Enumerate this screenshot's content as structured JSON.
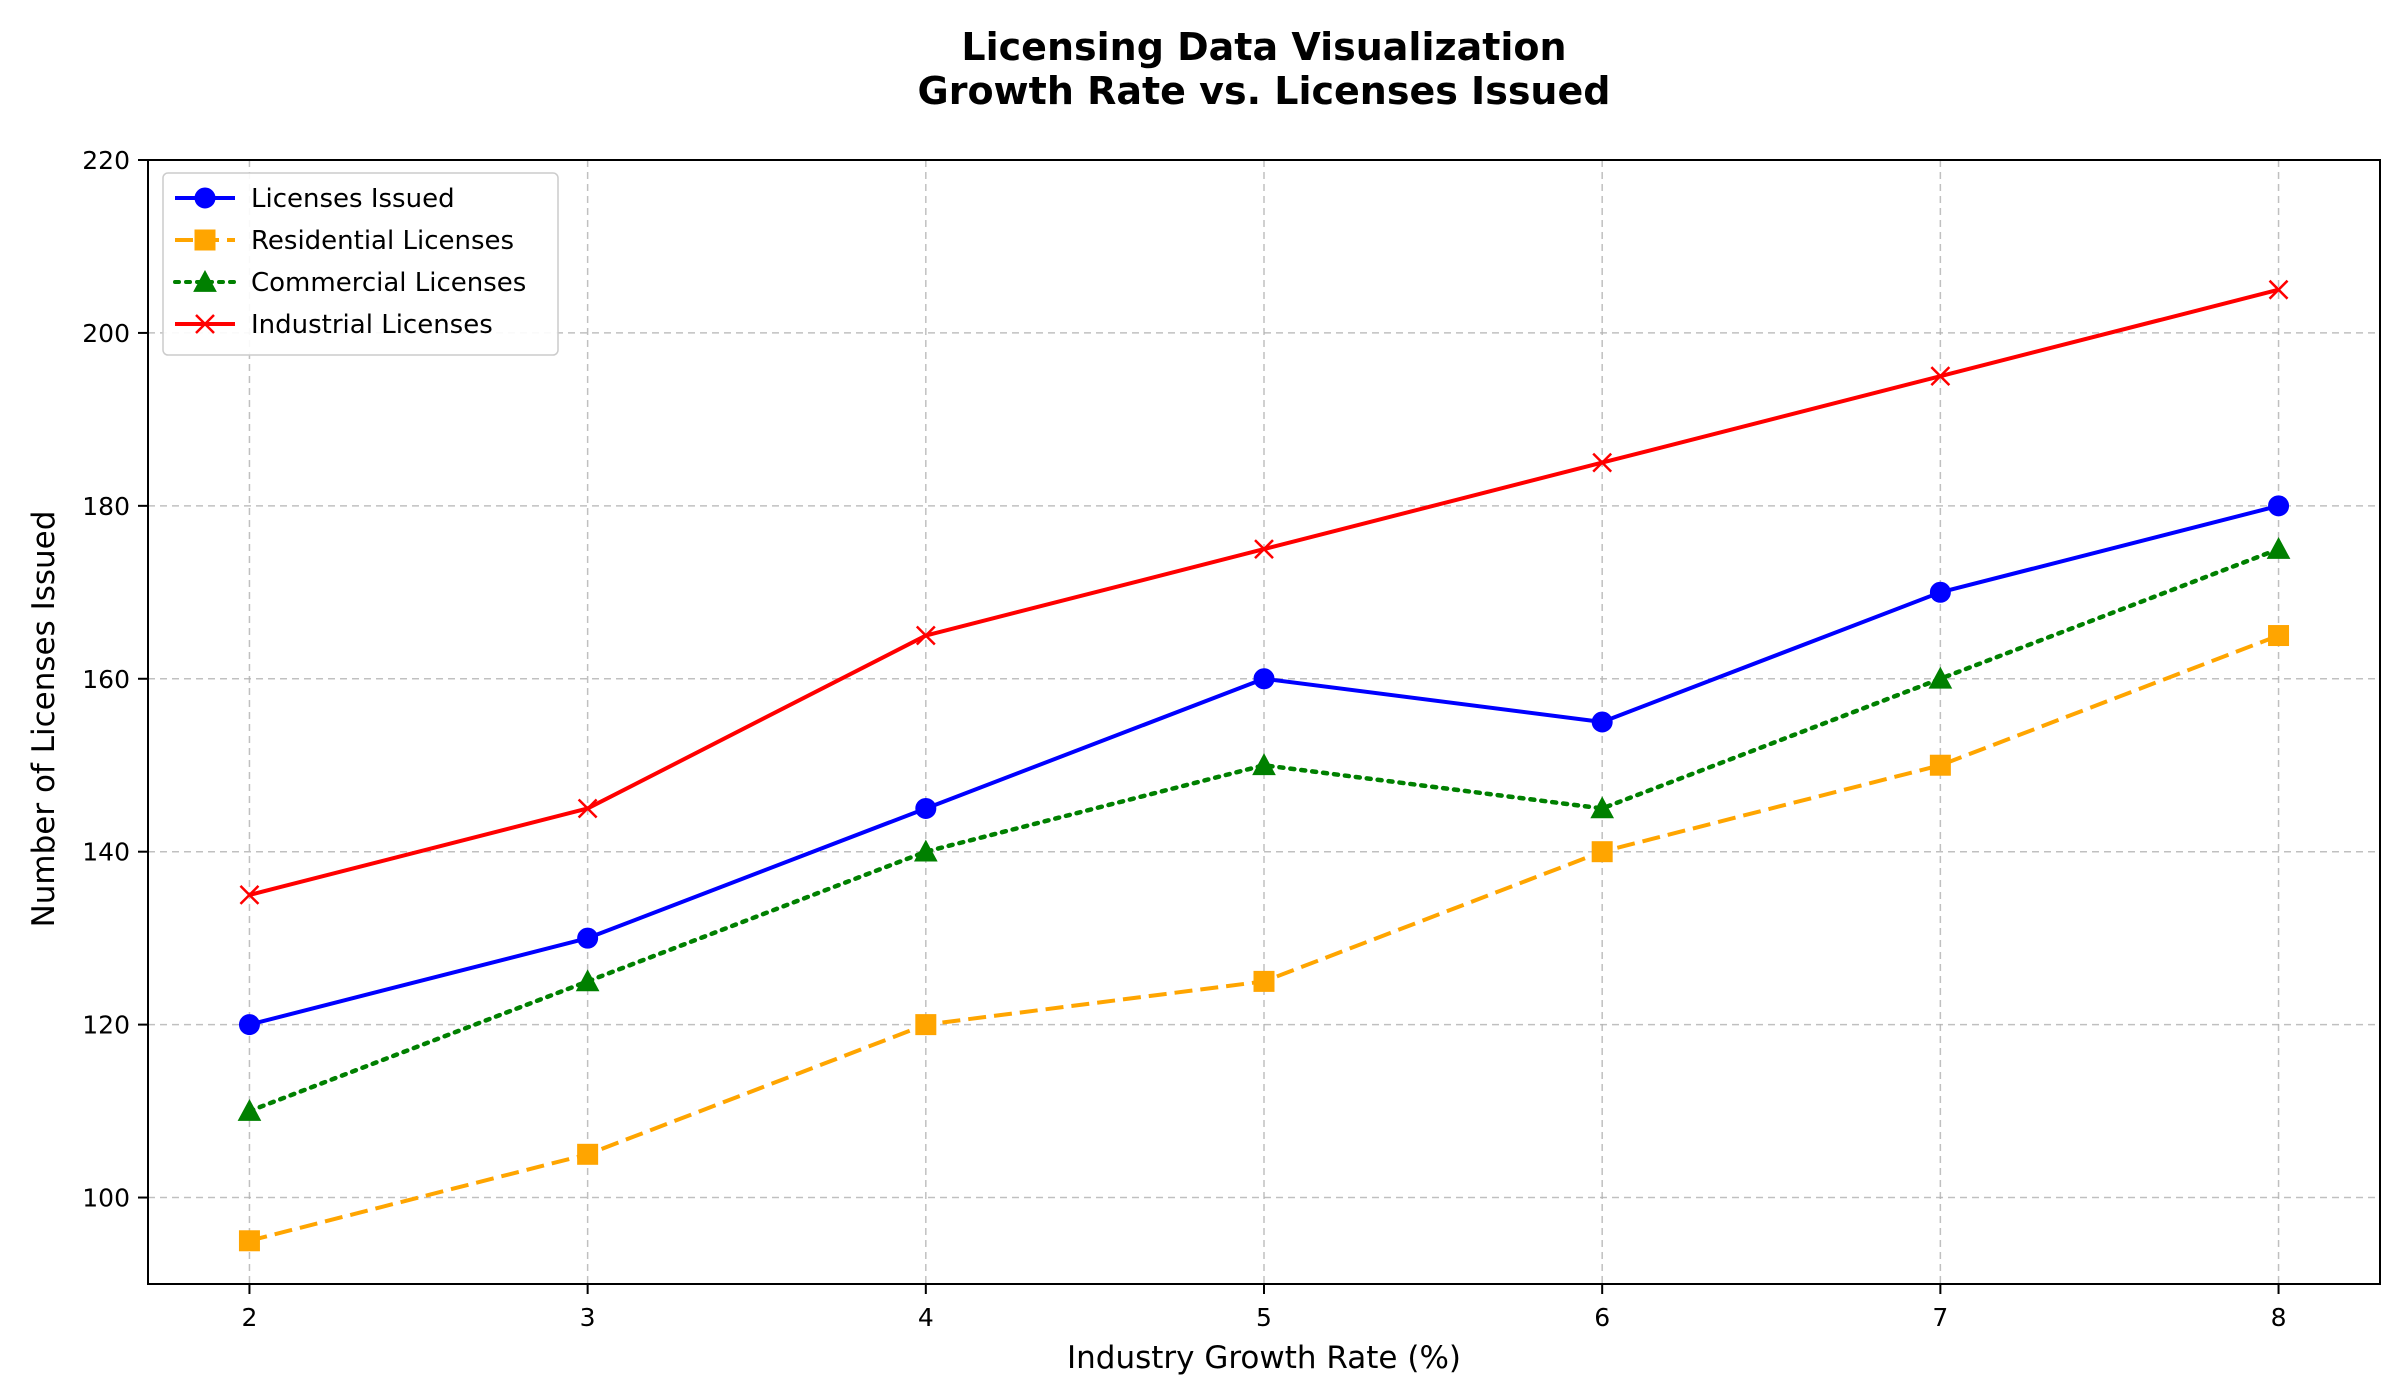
{
  "chart_data": {
    "type": "line",
    "title": "Licensing Data Visualization",
    "subtitle": "Growth Rate vs. Licenses Issued",
    "xlabel": "Industry Growth Rate (%)",
    "ylabel": "Number of Licenses Issued",
    "x": [
      2,
      3,
      4,
      5,
      6,
      7,
      8
    ],
    "xticks": [
      "2",
      "3",
      "4",
      "5",
      "6",
      "7",
      "8"
    ],
    "yticks": [
      "100",
      "120",
      "140",
      "160",
      "180",
      "200",
      "220"
    ],
    "xlim": [
      1.7,
      8.3
    ],
    "ylim": [
      90,
      220
    ],
    "grid": true,
    "legend_position": "upper-left",
    "series": [
      {
        "name": "Licenses Issued",
        "values": [
          120,
          130,
          145,
          160,
          155,
          170,
          180
        ],
        "color": "#0000ff",
        "line_style": "solid",
        "marker": "circle"
      },
      {
        "name": "Residential Licenses",
        "values": [
          95,
          105,
          120,
          125,
          140,
          150,
          165
        ],
        "color": "#ffa500",
        "line_style": "dashed",
        "marker": "square"
      },
      {
        "name": "Commercial Licenses",
        "values": [
          110,
          125,
          140,
          150,
          145,
          160,
          175
        ],
        "color": "#008000",
        "line_style": "dotted",
        "marker": "triangle"
      },
      {
        "name": "Industrial Licenses",
        "values": [
          135,
          145,
          165,
          175,
          185,
          195,
          205
        ],
        "color": "#ff0000",
        "line_style": "solid",
        "marker": "x"
      }
    ]
  }
}
